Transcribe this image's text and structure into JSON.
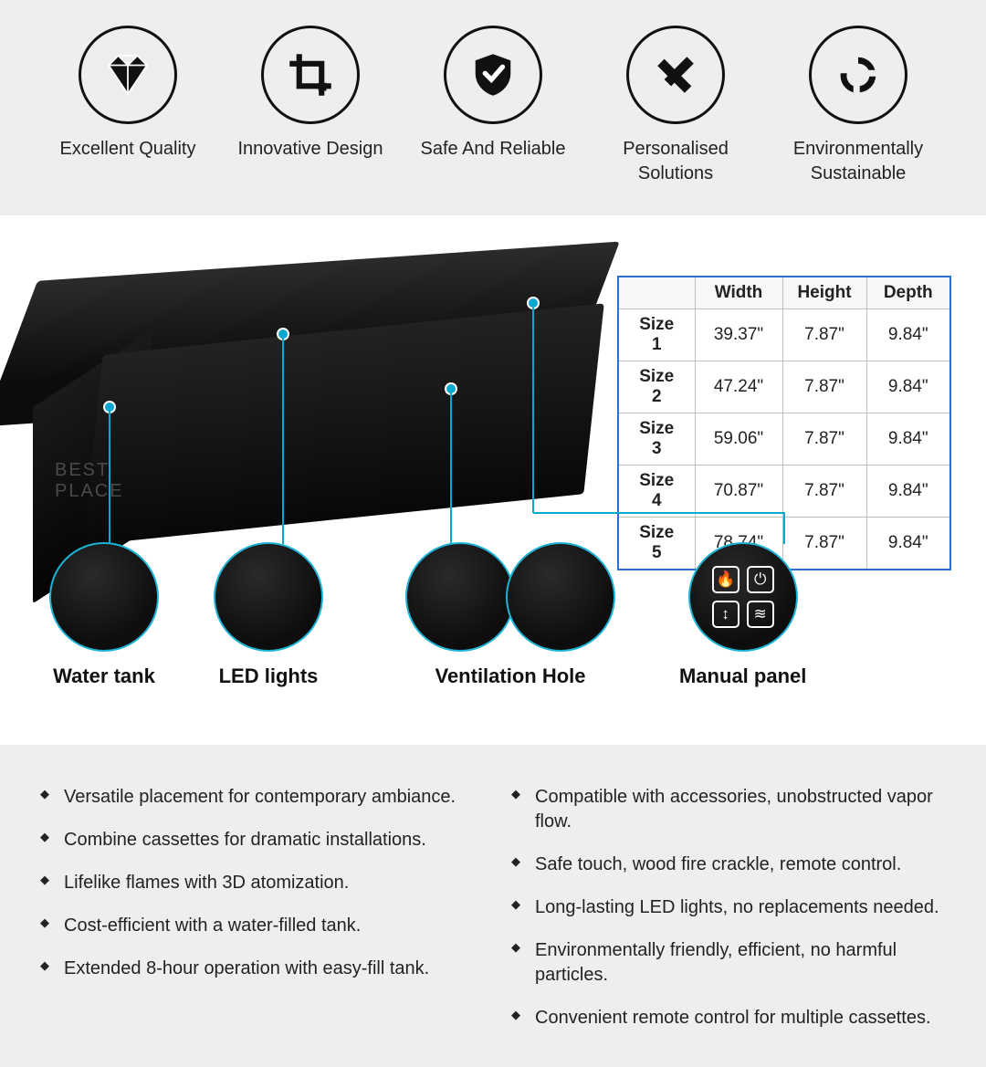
{
  "features": [
    {
      "icon": "diamond",
      "label": "Excellent Quality"
    },
    {
      "icon": "crop",
      "label": "Innovative Design"
    },
    {
      "icon": "shield",
      "label": "Safe And Reliable"
    },
    {
      "icon": "ruler",
      "label": "Personalised Solutions"
    },
    {
      "icon": "cycle",
      "label": "Environmentally Sustainable"
    }
  ],
  "watermark_line1": "BEST",
  "watermark_line2": "PLACE",
  "size_table": {
    "columns": [
      "",
      "Width",
      "Height",
      "Depth"
    ],
    "rows": [
      [
        "Size 1",
        "39.37\"",
        "7.87\"",
        "9.84\""
      ],
      [
        "Size 2",
        "47.24\"",
        "7.87\"",
        "9.84\""
      ],
      [
        "Size 3",
        "59.06\"",
        "7.87\"",
        "9.84\""
      ],
      [
        "Size 4",
        "70.87\"",
        "7.87\"",
        "9.84\""
      ],
      [
        "Size 5",
        "78.74\"",
        "7.87\"",
        "9.84\""
      ]
    ],
    "border_color": "#2a6fd6",
    "grid_color": "#bfbfbf"
  },
  "details": [
    {
      "key": "water-tank",
      "label": "Water tank"
    },
    {
      "key": "led-lights",
      "label": "LED lights"
    },
    {
      "key": "ventilation",
      "label": "Ventilation Hole"
    },
    {
      "key": "manual-panel",
      "label": "Manual panel"
    }
  ],
  "accent_color": "#0aa8cf",
  "bullets_left": [
    "Versatile placement for contemporary ambiance.",
    "Combine cassettes for dramatic installations.",
    "Lifelike flames with 3D atomization.",
    "Cost-efficient with a water-filled tank.",
    "Extended 8-hour operation with easy-fill tank."
  ],
  "bullets_right": [
    "Compatible with accessories, unobstructed vapor flow.",
    "Safe touch, wood fire crackle, remote control.",
    "Long-lasting LED lights, no replacements needed.",
    "Environmentally friendly, efficient, no harmful particles.",
    "Convenient remote control for multiple cassettes."
  ]
}
